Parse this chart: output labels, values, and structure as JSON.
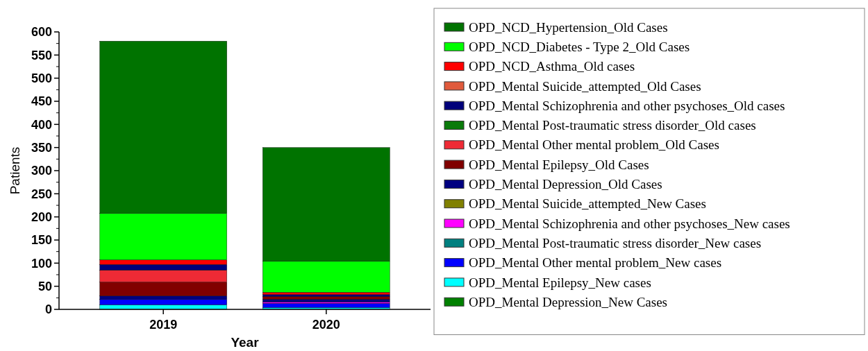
{
  "chart_data": {
    "type": "bar",
    "stacked": true,
    "xlabel": "Year",
    "ylabel": "Patients",
    "categories": [
      "2019",
      "2020"
    ],
    "ylim": [
      0,
      600
    ],
    "yticks": [
      0,
      50,
      100,
      150,
      200,
      250,
      300,
      350,
      400,
      450,
      500,
      550,
      600
    ],
    "legend": "right",
    "grid": false,
    "series": [
      {
        "name": "OPD_Mental Depression_New Cases",
        "color": "#008000",
        "values": [
          0,
          0
        ]
      },
      {
        "name": "OPD_Mental Epilepsy_New cases",
        "color": "#00ffff",
        "values": [
          10,
          4
        ]
      },
      {
        "name": "OPD_Mental Other mental problem_New cases",
        "color": "#0000ff",
        "values": [
          12,
          9
        ]
      },
      {
        "name": "OPD_Mental Post-traumatic stress disorder_New cases",
        "color": "#008080",
        "values": [
          0,
          0
        ]
      },
      {
        "name": "OPD_Mental Schizophrenia and other psychoses_New cases",
        "color": "#ff00ff",
        "values": [
          0,
          3
        ]
      },
      {
        "name": "OPD_Mental Suicide_attempted_New Cases",
        "color": "#808000",
        "values": [
          0,
          0
        ]
      },
      {
        "name": "OPD_Mental Depression_Old Cases",
        "color": "#000080",
        "values": [
          7,
          6
        ]
      },
      {
        "name": "OPD_Mental Epilepsy_Old Cases",
        "color": "#800000",
        "values": [
          30,
          6
        ]
      },
      {
        "name": "OPD_Mental Other mental problem_Old Cases",
        "color": "#ee2a35",
        "values": [
          26,
          0
        ]
      },
      {
        "name": "OPD_Mental Post-traumatic stress disorder_Old cases",
        "color": "#0a7a0a",
        "values": [
          0,
          0
        ]
      },
      {
        "name": "OPD_Mental Schizophrenia and other psychoses_Old cases",
        "color": "#00007a",
        "values": [
          12,
          4
        ]
      },
      {
        "name": "OPD_Mental Suicide_attempted_Old Cases",
        "color": "#e05a3c",
        "values": [
          0,
          0
        ]
      },
      {
        "name": "OPD_NCD_Asthma_Old cases",
        "color": "#ff0000",
        "values": [
          10,
          5
        ]
      },
      {
        "name": "OPD_NCD_Diabetes - Type 2_Old Cases",
        "color": "#00ff00",
        "values": [
          101,
          67
        ]
      },
      {
        "name": "OPD_NCD_Hypertension_Old Cases",
        "color": "#007300",
        "values": [
          372,
          246
        ]
      }
    ]
  }
}
